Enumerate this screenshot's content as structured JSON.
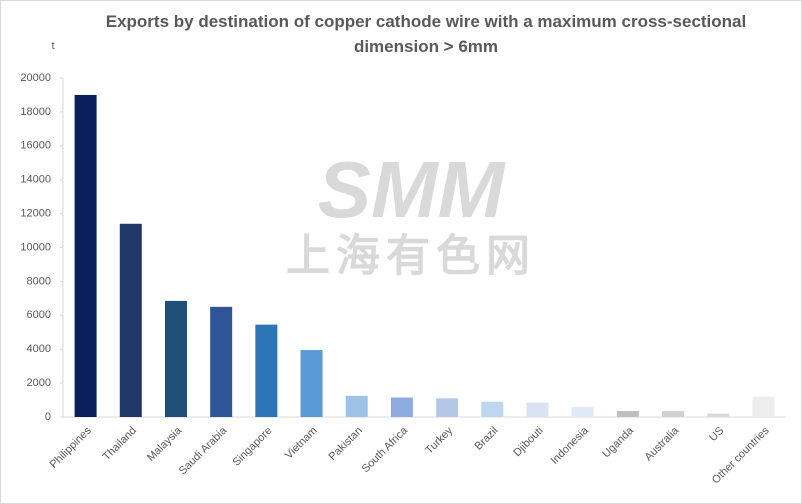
{
  "chart_data": {
    "type": "bar",
    "title": "Exports by destination of copper cathode wire with a maximum cross-sectional dimension > 6mm",
    "y_axis_label": "t",
    "watermark": [
      "SMM",
      "上海有色网"
    ],
    "categories": [
      "Philippines",
      "Thailand",
      "Malaysia",
      "Saudi Arabia",
      "Singapore",
      "Vietnam",
      "Pakistan",
      "South Africa",
      "Turkey",
      "Brazil",
      "Djibouti",
      "Indonesia",
      "Uganda",
      "Australia",
      "US",
      "Other countries"
    ],
    "values": [
      19000,
      11400,
      6850,
      6500,
      5450,
      3950,
      1250,
      1150,
      1100,
      900,
      850,
      600,
      350,
      350,
      200,
      1200
    ],
    "colors": [
      "#0b1f5c",
      "#1f3868",
      "#1f4e79",
      "#2f5597",
      "#2e75b6",
      "#5b9bd5",
      "#9dc3e6",
      "#8faadc",
      "#b4c7e7",
      "#bdd7ee",
      "#dae3f3",
      "#deebf7",
      "#bfbfbf",
      "#d0d0d0",
      "#d9d9d9",
      "#ededed"
    ],
    "ylim": [
      0,
      20000
    ],
    "yticks": [
      0,
      2000,
      4000,
      6000,
      8000,
      10000,
      12000,
      14000,
      16000,
      18000,
      20000
    ],
    "grid": false
  }
}
